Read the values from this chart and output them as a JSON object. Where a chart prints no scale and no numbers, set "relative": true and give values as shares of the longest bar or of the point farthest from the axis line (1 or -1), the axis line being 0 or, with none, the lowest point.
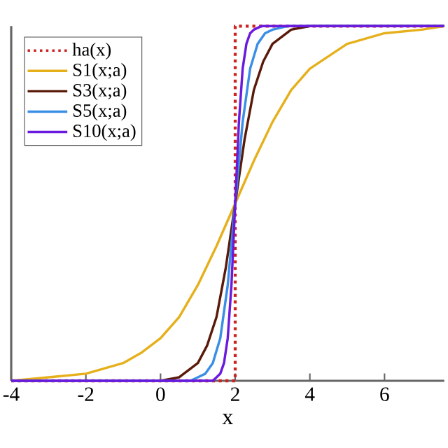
{
  "chart_data": {
    "type": "line",
    "xlabel": "x",
    "relative": true,
    "xlim": [
      -4,
      7.6
    ],
    "xticks": [
      -4,
      -2,
      0,
      2,
      4,
      6
    ],
    "grid": false,
    "legend": "top left",
    "marker": "none",
    "series": [
      {
        "name": "ha(x)",
        "color": "#cc2222",
        "line_style": "dotted",
        "x": [
          -4,
          2,
          2,
          7.6
        ],
        "values": [
          0,
          0,
          1,
          1
        ]
      },
      {
        "name": "S1(x;a)",
        "color": "#e6b01c",
        "line_style": "solid",
        "x": [
          -4,
          -3,
          -2,
          -1,
          -0.5,
          0,
          0.5,
          1,
          1.5,
          2,
          2.5,
          3,
          3.5,
          4,
          5,
          6,
          7,
          7.6
        ],
        "values": [
          0.0,
          0.01,
          0.02,
          0.05,
          0.08,
          0.12,
          0.18,
          0.27,
          0.38,
          0.5,
          0.62,
          0.73,
          0.82,
          0.88,
          0.95,
          0.98,
          0.99,
          1.0
        ]
      },
      {
        "name": "S3(x;a)",
        "color": "#5a1a0a",
        "line_style": "solid",
        "x": [
          -4,
          0,
          0.5,
          1,
          1.25,
          1.5,
          1.75,
          2,
          2.25,
          2.5,
          2.75,
          3,
          3.5,
          4,
          7.6
        ],
        "values": [
          0,
          0.0,
          0.01,
          0.05,
          0.1,
          0.18,
          0.32,
          0.5,
          0.68,
          0.82,
          0.9,
          0.95,
          0.99,
          1.0,
          1.0
        ]
      },
      {
        "name": "S5(x;a)",
        "color": "#3a8ee6",
        "line_style": "solid",
        "x": [
          -4,
          0.8,
          1,
          1.2,
          1.4,
          1.6,
          1.8,
          2,
          2.2,
          2.4,
          2.6,
          2.8,
          3,
          3.4,
          7.6
        ],
        "values": [
          0,
          0.0,
          0.01,
          0.02,
          0.05,
          0.12,
          0.27,
          0.5,
          0.73,
          0.88,
          0.95,
          0.98,
          0.99,
          1.0,
          1.0
        ]
      },
      {
        "name": "S10(x;a)",
        "color": "#6a1adf",
        "line_style": "solid",
        "x": [
          -4,
          1.4,
          1.5,
          1.6,
          1.7,
          1.8,
          1.9,
          2,
          2.1,
          2.2,
          2.3,
          2.4,
          2.5,
          2.7,
          7.6
        ],
        "values": [
          0,
          0.0,
          0.01,
          0.02,
          0.05,
          0.12,
          0.27,
          0.5,
          0.73,
          0.88,
          0.95,
          0.98,
          0.99,
          1.0,
          1.0
        ]
      }
    ]
  }
}
